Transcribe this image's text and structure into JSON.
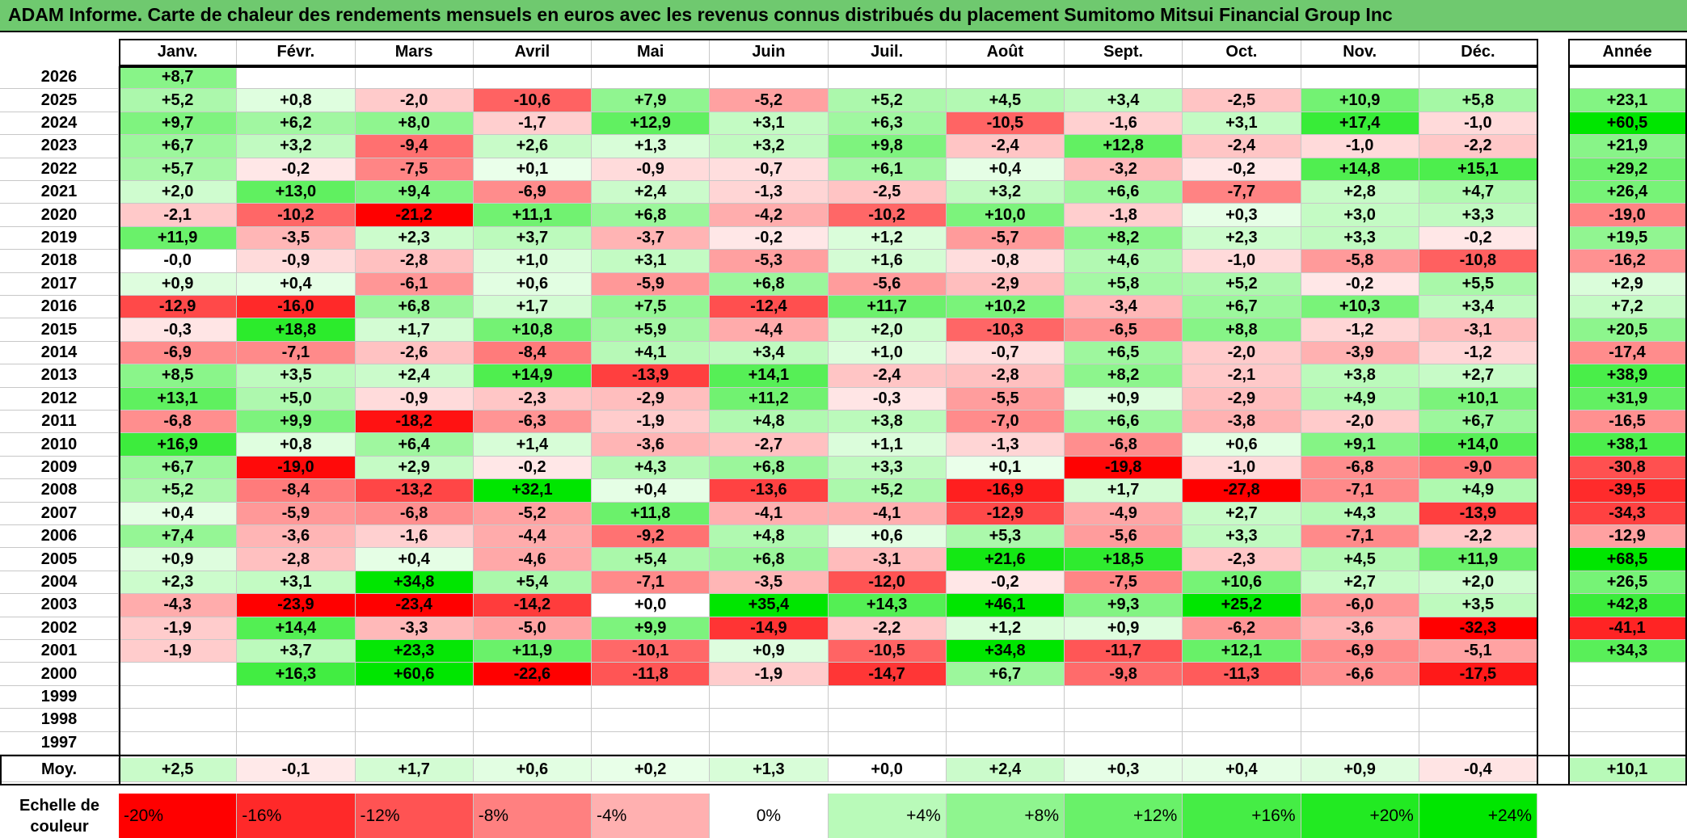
{
  "title": "ADAM Informe. Carte de chaleur des rendements mensuels en euros avec les revenus connus distribués du placement Sumitomo Mitsui Financial Group Inc",
  "chart_data": {
    "type": "heatmap",
    "title": "ADAM Informe. Carte de chaleur des rendements mensuels en euros avec les revenus connus distribués du placement Sumitomo Mitsui Financial Group Inc",
    "months": [
      "Janv.",
      "Févr.",
      "Mars",
      "Avril",
      "Mai",
      "Juin",
      "Juil.",
      "Août",
      "Sept.",
      "Oct.",
      "Nov.",
      "Déc."
    ],
    "year_header": "Année",
    "avg_label": "Moy.",
    "rows": [
      {
        "year": "2026",
        "values": [
          "+8,7",
          "",
          "",
          "",
          "",
          "",
          "",
          "",
          "",
          "",
          "",
          ""
        ],
        "annual": ""
      },
      {
        "year": "2025",
        "values": [
          "+5,2",
          "+0,8",
          "-2,0",
          "-10,6",
          "+7,9",
          "-5,2",
          "+5,2",
          "+4,5",
          "+3,4",
          "-2,5",
          "+10,9",
          "+5,8"
        ],
        "annual": "+23,1"
      },
      {
        "year": "2024",
        "values": [
          "+9,7",
          "+6,2",
          "+8,0",
          "-1,7",
          "+12,9",
          "+3,1",
          "+6,3",
          "-10,5",
          "-1,6",
          "+3,1",
          "+17,4",
          "-1,0"
        ],
        "annual": "+60,5"
      },
      {
        "year": "2023",
        "values": [
          "+6,7",
          "+3,2",
          "-9,4",
          "+2,6",
          "+1,3",
          "+3,2",
          "+9,8",
          "-2,4",
          "+12,8",
          "-2,4",
          "-1,0",
          "-2,2"
        ],
        "annual": "+21,9"
      },
      {
        "year": "2022",
        "values": [
          "+5,7",
          "-0,2",
          "-7,5",
          "+0,1",
          "-0,9",
          "-0,7",
          "+6,1",
          "+0,4",
          "-3,2",
          "-0,2",
          "+14,8",
          "+15,1"
        ],
        "annual": "+29,2"
      },
      {
        "year": "2021",
        "values": [
          "+2,0",
          "+13,0",
          "+9,4",
          "-6,9",
          "+2,4",
          "-1,3",
          "-2,5",
          "+3,2",
          "+6,6",
          "-7,7",
          "+2,8",
          "+4,7"
        ],
        "annual": "+26,4"
      },
      {
        "year": "2020",
        "values": [
          "-2,1",
          "-10,2",
          "-21,2",
          "+11,1",
          "+6,8",
          "-4,2",
          "-10,2",
          "+10,0",
          "-1,8",
          "+0,3",
          "+3,0",
          "+3,3"
        ],
        "annual": "-19,0"
      },
      {
        "year": "2019",
        "values": [
          "+11,9",
          "-3,5",
          "+2,3",
          "+3,7",
          "-3,7",
          "-0,2",
          "+1,2",
          "-5,7",
          "+8,2",
          "+2,3",
          "+3,3",
          "-0,2"
        ],
        "annual": "+19,5"
      },
      {
        "year": "2018",
        "values": [
          "-0,0",
          "-0,9",
          "-2,8",
          "+1,0",
          "+3,1",
          "-5,3",
          "+1,6",
          "-0,8",
          "+4,6",
          "-1,0",
          "-5,8",
          "-10,8"
        ],
        "annual": "-16,2"
      },
      {
        "year": "2017",
        "values": [
          "+0,9",
          "+0,4",
          "-6,1",
          "+0,6",
          "-5,9",
          "+6,8",
          "-5,6",
          "-2,9",
          "+5,8",
          "+5,2",
          "-0,2",
          "+5,5"
        ],
        "annual": "+2,9"
      },
      {
        "year": "2016",
        "values": [
          "-12,9",
          "-16,0",
          "+6,8",
          "+1,7",
          "+7,5",
          "-12,4",
          "+11,7",
          "+10,2",
          "-3,4",
          "+6,7",
          "+10,3",
          "+3,4"
        ],
        "annual": "+7,2"
      },
      {
        "year": "2015",
        "values": [
          "-0,3",
          "+18,8",
          "+1,7",
          "+10,8",
          "+5,9",
          "-4,4",
          "+2,0",
          "-10,3",
          "-6,5",
          "+8,8",
          "-1,2",
          "-3,1"
        ],
        "annual": "+20,5"
      },
      {
        "year": "2014",
        "values": [
          "-6,9",
          "-7,1",
          "-2,6",
          "-8,4",
          "+4,1",
          "+3,4",
          "+1,0",
          "-0,7",
          "+6,5",
          "-2,0",
          "-3,9",
          "-1,2"
        ],
        "annual": "-17,4"
      },
      {
        "year": "2013",
        "values": [
          "+8,5",
          "+3,5",
          "+2,4",
          "+14,9",
          "-13,9",
          "+14,1",
          "-2,4",
          "-2,8",
          "+8,2",
          "-2,1",
          "+3,8",
          "+2,7"
        ],
        "annual": "+38,9"
      },
      {
        "year": "2012",
        "values": [
          "+13,1",
          "+5,0",
          "-0,9",
          "-2,3",
          "-2,9",
          "+11,2",
          "-0,3",
          "-5,5",
          "+0,9",
          "-2,9",
          "+4,9",
          "+10,1"
        ],
        "annual": "+31,9"
      },
      {
        "year": "2011",
        "values": [
          "-6,8",
          "+9,9",
          "-18,2",
          "-6,3",
          "-1,9",
          "+4,8",
          "+3,8",
          "-7,0",
          "+6,6",
          "-3,8",
          "-2,0",
          "+6,7"
        ],
        "annual": "-16,5"
      },
      {
        "year": "2010",
        "values": [
          "+16,9",
          "+0,8",
          "+6,4",
          "+1,4",
          "-3,6",
          "-2,7",
          "+1,1",
          "-1,3",
          "-6,8",
          "+0,6",
          "+9,1",
          "+14,0"
        ],
        "annual": "+38,1"
      },
      {
        "year": "2009",
        "values": [
          "+6,7",
          "-19,0",
          "+2,9",
          "-0,2",
          "+4,3",
          "+6,8",
          "+3,3",
          "+0,1",
          "-19,8",
          "-1,0",
          "-6,8",
          "-9,0"
        ],
        "annual": "-30,8"
      },
      {
        "year": "2008",
        "values": [
          "+5,2",
          "-8,4",
          "-13,2",
          "+32,1",
          "+0,4",
          "-13,6",
          "+5,2",
          "-16,9",
          "+1,7",
          "-27,8",
          "-7,1",
          "+4,9"
        ],
        "annual": "-39,5"
      },
      {
        "year": "2007",
        "values": [
          "+0,4",
          "-5,9",
          "-6,8",
          "-5,2",
          "+11,8",
          "-4,1",
          "-4,1",
          "-12,9",
          "-4,9",
          "+2,7",
          "+4,3",
          "-13,9"
        ],
        "annual": "-34,3"
      },
      {
        "year": "2006",
        "values": [
          "+7,4",
          "-3,6",
          "-1,6",
          "-4,4",
          "-9,2",
          "+4,8",
          "+0,6",
          "+5,3",
          "-5,6",
          "+3,3",
          "-7,1",
          "-2,2"
        ],
        "annual": "-12,9"
      },
      {
        "year": "2005",
        "values": [
          "+0,9",
          "-2,8",
          "+0,4",
          "-4,6",
          "+5,4",
          "+6,8",
          "-3,1",
          "+21,6",
          "+18,5",
          "-2,3",
          "+4,5",
          "+11,9"
        ],
        "annual": "+68,5"
      },
      {
        "year": "2004",
        "values": [
          "+2,3",
          "+3,1",
          "+34,8",
          "+5,4",
          "-7,1",
          "-3,5",
          "-12,0",
          "-0,2",
          "-7,5",
          "+10,6",
          "+2,7",
          "+2,0"
        ],
        "annual": "+26,5"
      },
      {
        "year": "2003",
        "values": [
          "-4,3",
          "-23,9",
          "-23,4",
          "-14,2",
          "+0,0",
          "+35,4",
          "+14,3",
          "+46,1",
          "+9,3",
          "+25,2",
          "-6,0",
          "+3,5"
        ],
        "annual": "+42,8"
      },
      {
        "year": "2002",
        "values": [
          "-1,9",
          "+14,4",
          "-3,3",
          "-5,0",
          "+9,9",
          "-14,9",
          "-2,2",
          "+1,2",
          "+0,9",
          "-6,2",
          "-3,6",
          "-32,3"
        ],
        "annual": "-41,1"
      },
      {
        "year": "2001",
        "values": [
          "-1,9",
          "+3,7",
          "+23,3",
          "+11,9",
          "-10,1",
          "+0,9",
          "-10,5",
          "+34,8",
          "-11,7",
          "+12,1",
          "-6,9",
          "-5,1"
        ],
        "annual": "+34,3"
      },
      {
        "year": "2000",
        "values": [
          "",
          "+16,3",
          "+60,6",
          "-22,6",
          "-11,8",
          "-1,9",
          "-14,7",
          "+6,7",
          "-9,8",
          "-11,3",
          "-6,6",
          "-17,5"
        ],
        "annual": ""
      },
      {
        "year": "1999",
        "values": [
          "",
          "",
          "",
          "",
          "",
          "",
          "",
          "",
          "",
          "",
          "",
          ""
        ],
        "annual": ""
      },
      {
        "year": "1998",
        "values": [
          "",
          "",
          "",
          "",
          "",
          "",
          "",
          "",
          "",
          "",
          "",
          ""
        ],
        "annual": ""
      },
      {
        "year": "1997",
        "values": [
          "",
          "",
          "",
          "",
          "",
          "",
          "",
          "",
          "",
          "",
          "",
          ""
        ],
        "annual": ""
      }
    ],
    "averages": [
      "+2,5",
      "-0,1",
      "+1,7",
      "+0,6",
      "+0,2",
      "+1,3",
      "+0,0",
      "+2,4",
      "+0,3",
      "+0,4",
      "+0,9",
      "-0,4"
    ],
    "average_annual": "+10,1",
    "scale": {
      "label": "Echelle de couleur",
      "steps": [
        "-20%",
        "-16%",
        "-12%",
        "-8%",
        "-4%",
        "0%",
        "+4%",
        "+8%",
        "+12%",
        "+16%",
        "+20%",
        "+24%"
      ]
    },
    "colors": {
      "title_bar": "#6fc96f",
      "neg_max": "#ff0000",
      "pos_max": "#00e600",
      "neutral": "#ffffff"
    }
  }
}
